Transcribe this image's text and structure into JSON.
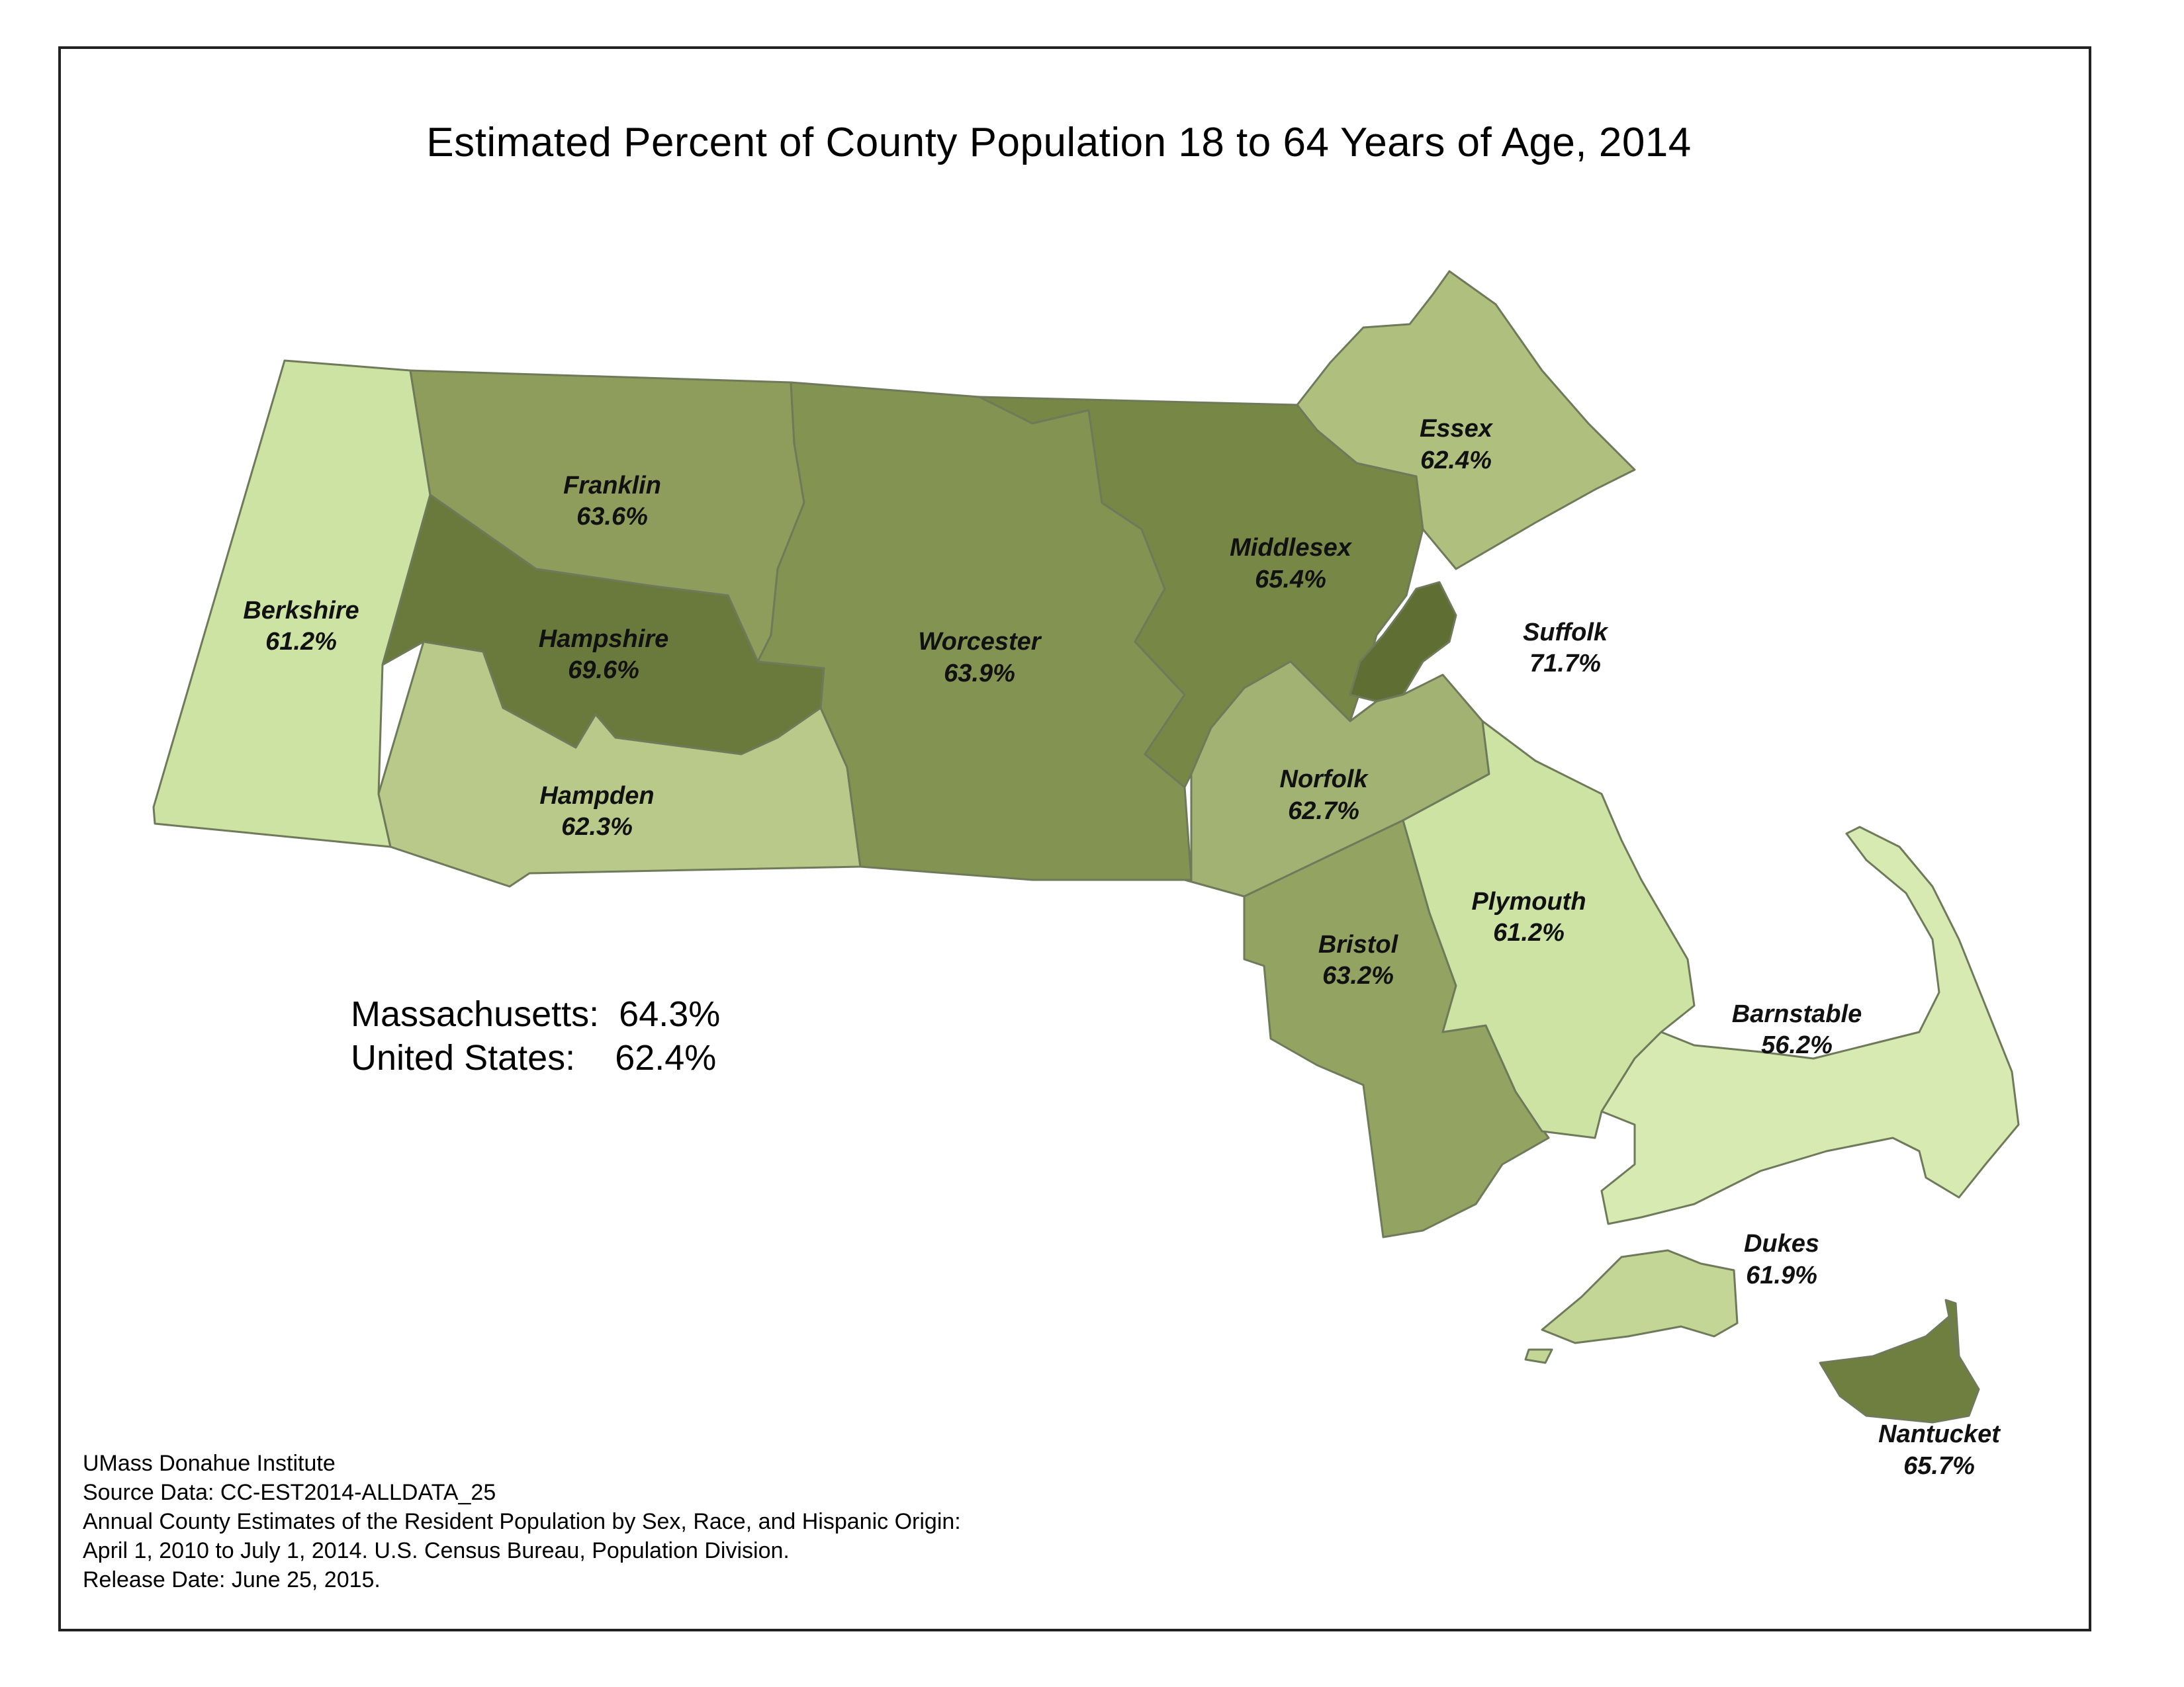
{
  "title": "Estimated Percent of County Population 18 to 64 Years of Age, 2014",
  "counties": {
    "berkshire": {
      "name": "Berkshire",
      "value": "61.2%",
      "color": "#cde3a3"
    },
    "franklin": {
      "name": "Franklin",
      "value": "63.6%",
      "color": "#8e9d5c"
    },
    "hampshire": {
      "name": "Hampshire",
      "value": "69.6%",
      "color": "#6a7a3d"
    },
    "hampden": {
      "name": "Hampden",
      "value": "62.3%",
      "color": "#b8c98a"
    },
    "worcester": {
      "name": "Worcester",
      "value": "63.9%",
      "color": "#839352"
    },
    "middlesex": {
      "name": "Middlesex",
      "value": "65.4%",
      "color": "#778745"
    },
    "essex": {
      "name": "Essex",
      "value": "62.4%",
      "color": "#aebf7e"
    },
    "suffolk": {
      "name": "Suffolk",
      "value": "71.7%",
      "color": "#5f6e33"
    },
    "norfolk": {
      "name": "Norfolk",
      "value": "62.7%",
      "color": "#a1b272"
    },
    "plymouth": {
      "name": "Plymouth",
      "value": "61.2%",
      "color": "#cde3a3"
    },
    "bristol": {
      "name": "Bristol",
      "value": "63.2%",
      "color": "#93a361"
    },
    "barnstable": {
      "name": "Barnstable",
      "value": "56.2%",
      "color": "#d7eab2"
    },
    "dukes": {
      "name": "Dukes",
      "value": "61.9%",
      "color": "#c3d696"
    },
    "nantucket": {
      "name": "Nantucket",
      "value": "65.7%",
      "color": "#6f7f40"
    }
  },
  "summary": {
    "ma_label": "Massachusetts:",
    "ma_value": "64.3%",
    "us_label": "United States:",
    "us_value": "62.4%"
  },
  "source": {
    "line1": "UMass Donahue Institute",
    "line2": "Source Data: CC-EST2014-ALLDATA_25",
    "line3": "Annual County Estimates of the Resident Population by Sex, Race, and Hispanic Origin:",
    "line4": "April 1, 2010 to July 1, 2014. U.S. Census Bureau, Population Division.",
    "line5": "Release Date: June 25, 2015."
  }
}
